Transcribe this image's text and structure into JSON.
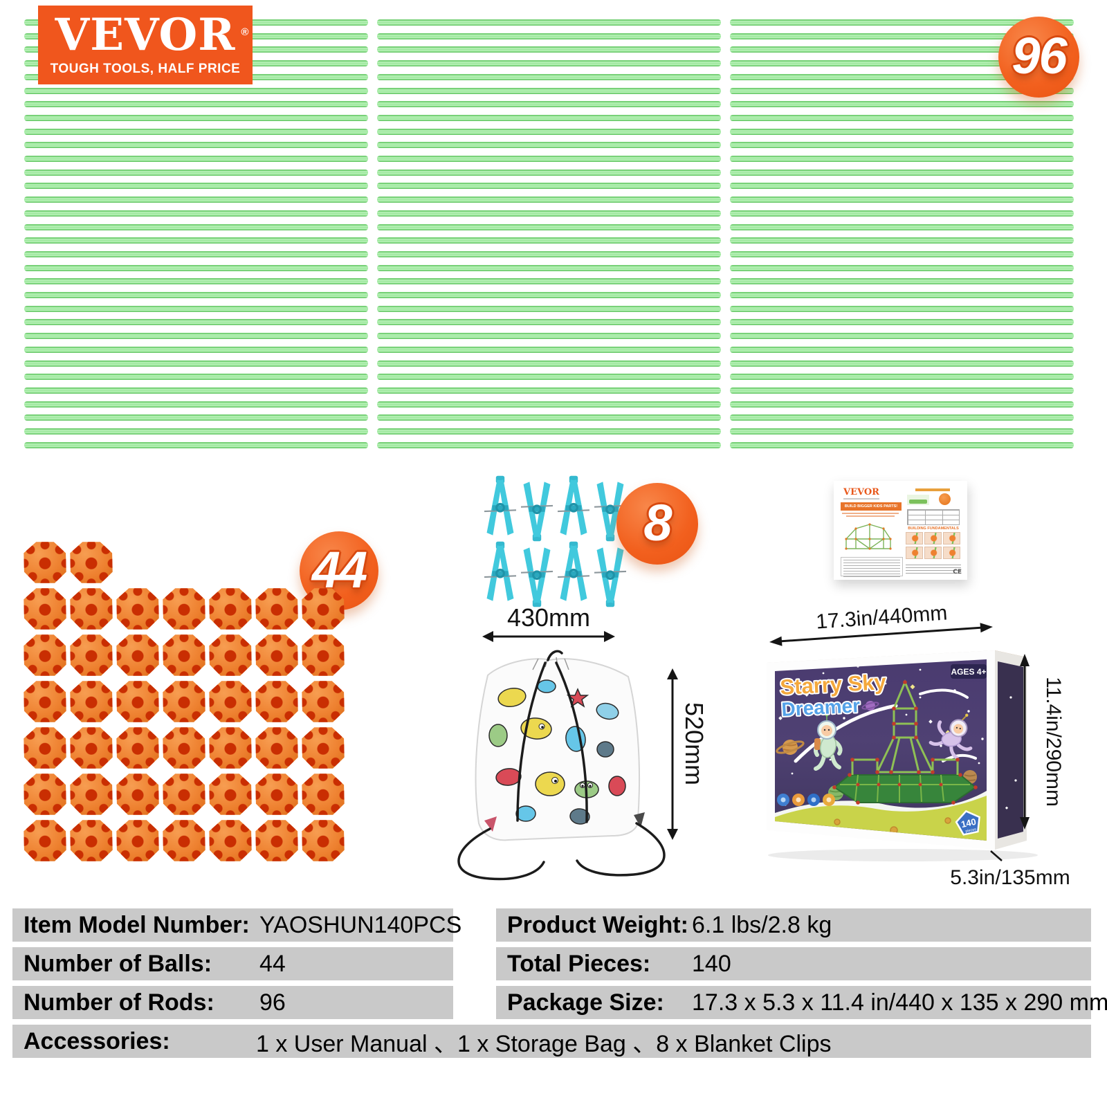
{
  "brand": {
    "name": "VEVOR",
    "registered": "®",
    "tagline": "TOUGH TOOLS, HALF PRICE"
  },
  "counts": {
    "rods_badge": "96",
    "balls_badge": "44",
    "clips_badge": "8",
    "rod_columns": 3,
    "rods_per_column": 32,
    "balls_rows": [
      2,
      7,
      7,
      7,
      7,
      7,
      7
    ],
    "clip_rows": 2,
    "clips_per_row": 4
  },
  "storage_bag": {
    "width_label": "430mm",
    "height_label": "520mm"
  },
  "package_box": {
    "title_line1": "Starry Sky",
    "title_line2": "Dreamer",
    "ages_label": "AGES 4+",
    "pieces_count": "140",
    "pieces_unit": "pieces",
    "width_label": "17.3in/440mm",
    "height_label": "11.4in/290mm",
    "depth_label": "5.3in/135mm"
  },
  "manual": {
    "brand": "VEVOR",
    "banner": "BUILD BIGGER KIDS PARTS!",
    "section_title": "BUILDING FUNDAMENTALS",
    "ce_mark": "CE"
  },
  "spec_table": {
    "left_rows": [
      {
        "label": "Item Model Number:",
        "value": "YAOSHUN140PCS"
      },
      {
        "label": "Number of Balls:",
        "value": "44"
      },
      {
        "label": "Number of Rods:",
        "value": "96"
      }
    ],
    "right_rows": [
      {
        "label": "Product Weight:",
        "value": "6.1 lbs/2.8 kg"
      },
      {
        "label": "Total Pieces:",
        "value": "140"
      },
      {
        "label": "Package Size:",
        "value": "17.3 x 5.3 x 11.4 in/440 x 135 x 290 mm"
      }
    ],
    "full_rows": [
      {
        "label": "Accessories:",
        "value": "1 x User Manual 、1 x Storage Bag 、8 x Blanket Clips"
      }
    ]
  },
  "colors": {
    "brand_orange": "#f0561d",
    "badge_orange": "#f2601e",
    "rod_green": "#8fe092",
    "ball_orange": "#ee8130",
    "clip_cyan": "#41c9dd",
    "table_gray": "#c9c9c9",
    "box_purple": "#46386a",
    "box_ground_green": "#c9d34a",
    "title_orange": "#f4a83c",
    "title_blue": "#54a1e8"
  }
}
